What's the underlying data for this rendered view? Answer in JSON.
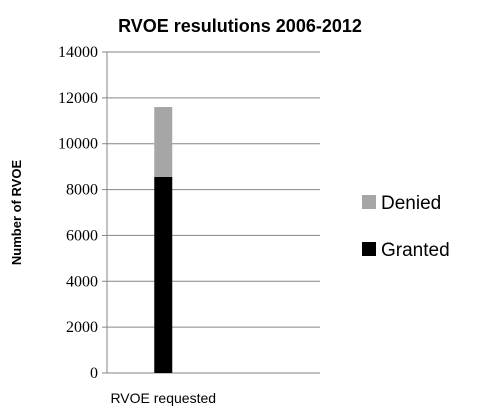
{
  "chart_data": {
    "type": "bar",
    "stacked": true,
    "title": "RVOE resulutions 2006-2012",
    "xlabel": "",
    "ylabel": "Number of RVOE",
    "categories": [
      "RVOE requested"
    ],
    "series": [
      {
        "name": "Granted",
        "values": [
          8550
        ],
        "color": "#000000"
      },
      {
        "name": "Denied",
        "values": [
          3050
        ],
        "color": "#a6a6a6"
      }
    ],
    "ylim": [
      0,
      14000
    ],
    "yticks": [
      "0",
      "2000",
      "4000",
      "6000",
      "8000",
      "10000",
      "12000",
      "14000"
    ],
    "grid": true,
    "legend_position": "right"
  }
}
